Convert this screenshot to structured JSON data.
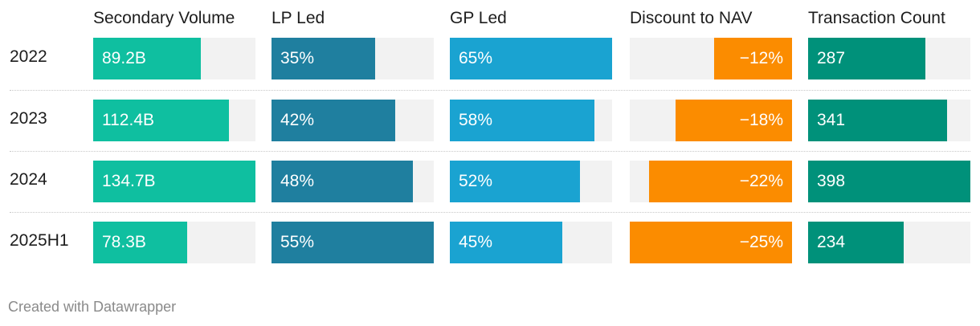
{
  "chart_data": {
    "type": "table",
    "columns": [
      {
        "key": "secondary_volume",
        "label": "Secondary Volume",
        "color": "#0fbfa0",
        "domain": [
          0,
          134.7
        ],
        "anchor": "left"
      },
      {
        "key": "lp_led",
        "label": "LP Led",
        "color": "#1f7f9f",
        "domain": [
          0,
          55
        ],
        "anchor": "left"
      },
      {
        "key": "gp_led",
        "label": "GP Led",
        "color": "#1aa3d1",
        "domain": [
          0,
          65
        ],
        "anchor": "left"
      },
      {
        "key": "discount_to_nav",
        "label": "Discount to NAV",
        "color": "#fb8c00",
        "domain": [
          0,
          25
        ],
        "anchor": "right"
      },
      {
        "key": "transaction_count",
        "label": "Transaction Count",
        "color": "#00917a",
        "domain": [
          0,
          398
        ],
        "anchor": "left"
      }
    ],
    "rows": [
      {
        "label": "2022",
        "values": [
          89.2,
          35,
          65,
          -12,
          287
        ],
        "display": [
          "89.2B",
          "35%",
          "65%",
          "−12%",
          "287"
        ]
      },
      {
        "label": "2023",
        "values": [
          112.4,
          42,
          58,
          -18,
          341
        ],
        "display": [
          "112.4B",
          "42%",
          "58%",
          "−18%",
          "341"
        ]
      },
      {
        "label": "2024",
        "values": [
          134.7,
          48,
          52,
          -22,
          398
        ],
        "display": [
          "134.7B",
          "48%",
          "52%",
          "−22%",
          "398"
        ]
      },
      {
        "label": "2025H1",
        "values": [
          78.3,
          55,
          45,
          -25,
          234
        ],
        "display": [
          "78.3B",
          "55%",
          "45%",
          "−25%",
          "234"
        ]
      }
    ]
  },
  "footer": {
    "credit": "Created with Datawrapper"
  }
}
